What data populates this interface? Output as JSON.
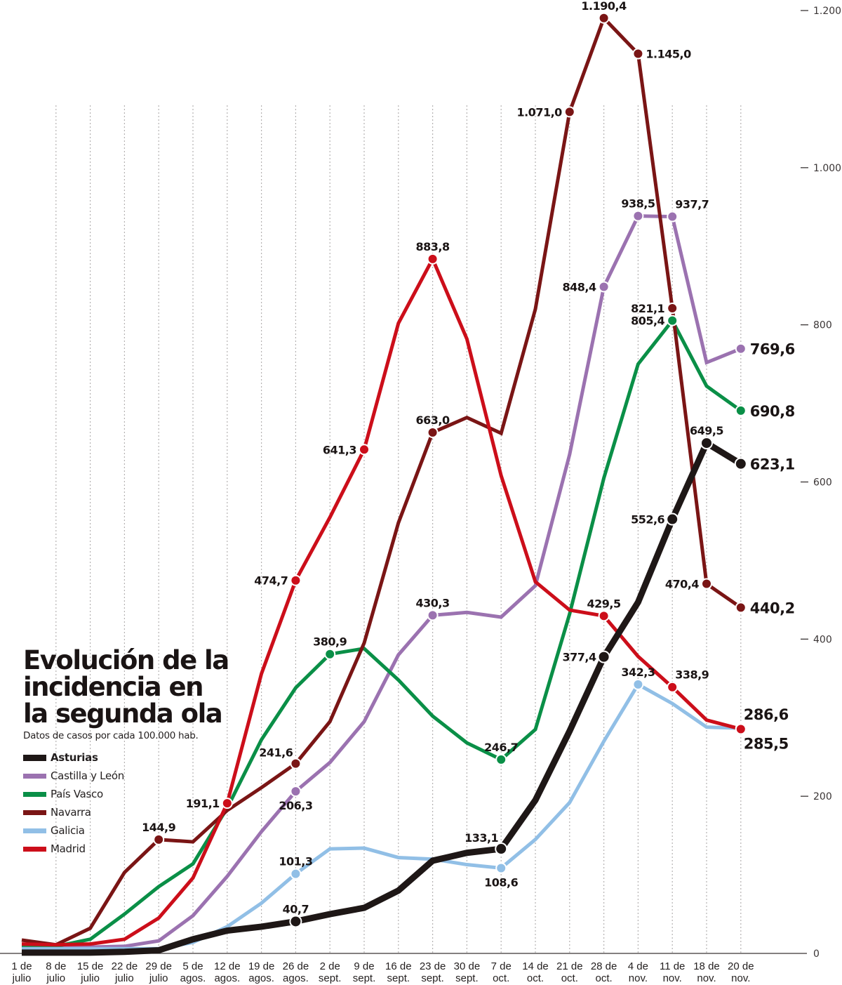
{
  "chart_data": {
    "type": "line",
    "title": "Evolución de la incidencia en la segunda ola",
    "subtitle": "Datos de casos por cada 100.000 hab.",
    "xlabel": "",
    "ylabel": "",
    "ylim": [
      0,
      1200
    ],
    "yticks": [
      0,
      200,
      400,
      600,
      800,
      1000,
      1200
    ],
    "ytick_labels": [
      "0",
      "200",
      "400",
      "600",
      "800",
      "1.000",
      "1.200"
    ],
    "grid": "vertical dotted lines at each category",
    "legend_position": "left-middle",
    "categories": [
      [
        "1 de",
        "julio"
      ],
      [
        "8 de",
        "julio"
      ],
      [
        "15 de",
        "julio"
      ],
      [
        "22 de",
        "julio"
      ],
      [
        "29 de",
        "julio"
      ],
      [
        "5 de",
        "agos."
      ],
      [
        "12 de",
        "agos."
      ],
      [
        "19 de",
        "agos."
      ],
      [
        "26 de",
        "agos."
      ],
      [
        "2 de",
        "sept."
      ],
      [
        "9 de",
        "sept."
      ],
      [
        "16 de",
        "sept."
      ],
      [
        "23 de",
        "sept."
      ],
      [
        "30 de",
        "sept."
      ],
      [
        "7 de",
        "oct."
      ],
      [
        "14 de",
        "oct."
      ],
      [
        "21 de",
        "oct."
      ],
      [
        "28 de",
        "oct."
      ],
      [
        "4 de",
        "nov."
      ],
      [
        "11 de",
        "nov."
      ],
      [
        "18 de",
        "nov."
      ],
      [
        "20 de",
        "nov."
      ]
    ],
    "series": [
      {
        "name": "Castilla y León",
        "color": "#9b72b0",
        "values": [
          9,
          8,
          8,
          9,
          16,
          48,
          98,
          155,
          206.3,
          243,
          295,
          380,
          430.3,
          434,
          428,
          468,
          635,
          848.4,
          938.5,
          937.7,
          752,
          769.6
        ],
        "labels": [
          {
            "index": 8,
            "text": "206,3",
            "pos": "below"
          },
          {
            "index": 12,
            "text": "430,3",
            "pos": "above"
          },
          {
            "index": 17,
            "text": "848,4",
            "pos": "left"
          },
          {
            "index": 18,
            "text": "938,5",
            "pos": "above"
          },
          {
            "index": 19,
            "text": "937,7",
            "pos": "above-right"
          },
          {
            "index": 21,
            "text": "769,6",
            "pos": "right",
            "big": true
          }
        ]
      },
      {
        "name": "País Vasco",
        "color": "#0a8f47",
        "values": [
          10,
          9,
          18,
          50,
          85,
          114,
          185,
          272,
          338,
          380.9,
          388,
          348,
          302,
          268,
          246.7,
          285,
          432,
          605,
          750,
          805.4,
          722,
          690.8
        ],
        "labels": [
          {
            "index": 9,
            "text": "380,9",
            "pos": "above"
          },
          {
            "index": 14,
            "text": "246,7",
            "pos": "above"
          },
          {
            "index": 19,
            "text": "805,4",
            "pos": "left"
          },
          {
            "index": 21,
            "text": "690,8",
            "pos": "right",
            "big": true
          }
        ]
      },
      {
        "name": "Navarra",
        "color": "#7a1515",
        "values": [
          17,
          11,
          32,
          103,
          144.9,
          142,
          182,
          211,
          241.6,
          295,
          395,
          548,
          663.0,
          682,
          662,
          820,
          1071.0,
          1190.4,
          1145.0,
          821.1,
          470.4,
          440.2
        ],
        "labels": [
          {
            "index": 4,
            "text": "144,9",
            "pos": "above"
          },
          {
            "index": 8,
            "text": "241,6",
            "pos": "above-left"
          },
          {
            "index": 12,
            "text": "663,0",
            "pos": "above"
          },
          {
            "index": 16,
            "text": "1.071,0",
            "pos": "left"
          },
          {
            "index": 17,
            "text": "1.190,4",
            "pos": "above"
          },
          {
            "index": 18,
            "text": "1.145,0",
            "pos": "right"
          },
          {
            "index": 19,
            "text": "821,1",
            "pos": "left"
          },
          {
            "index": 20,
            "text": "470,4",
            "pos": "left"
          },
          {
            "index": 21,
            "text": "440,2",
            "pos": "right",
            "big": true
          }
        ]
      },
      {
        "name": "Galicia",
        "color": "#91bfe6",
        "values": [
          6,
          6,
          6,
          6,
          6,
          14,
          34,
          64,
          101.3,
          133,
          134,
          122,
          120,
          113,
          108.6,
          145,
          192,
          270,
          342.3,
          318,
          288,
          286.6
        ],
        "labels": [
          {
            "index": 8,
            "text": "101,3",
            "pos": "above"
          },
          {
            "index": 14,
            "text": "108,6",
            "pos": "below"
          },
          {
            "index": 18,
            "text": "342,3",
            "pos": "above"
          },
          {
            "index": 21,
            "text": "286,6",
            "pos": "above-right",
            "big": true
          }
        ]
      },
      {
        "name": "Madrid",
        "color": "#cc0e1a",
        "values": [
          12,
          11,
          12,
          18,
          45,
          96,
          191.1,
          356,
          474.7,
          555,
          641.3,
          802,
          883.8,
          782,
          608,
          473,
          437,
          429.5,
          378,
          338.9,
          297,
          285.5
        ],
        "labels": [
          {
            "index": 6,
            "text": "191,1",
            "pos": "left"
          },
          {
            "index": 8,
            "text": "474,7",
            "pos": "left"
          },
          {
            "index": 10,
            "text": "641,3",
            "pos": "left"
          },
          {
            "index": 12,
            "text": "883,8",
            "pos": "above"
          },
          {
            "index": 17,
            "text": "429,5",
            "pos": "above"
          },
          {
            "index": 19,
            "text": "338,9",
            "pos": "above-right"
          },
          {
            "index": 21,
            "text": "285,5",
            "pos": "below-right",
            "big": true
          }
        ]
      },
      {
        "name": "Asturias",
        "color": "#1e1716",
        "bold": true,
        "values": [
          1,
          1,
          1,
          2,
          4,
          18,
          29,
          34,
          40.7,
          50,
          58,
          80,
          118,
          128,
          133.1,
          195,
          283,
          377.4,
          447,
          552.6,
          649.5,
          623.1
        ],
        "labels": [
          {
            "index": 8,
            "text": "40,7",
            "pos": "above"
          },
          {
            "index": 14,
            "text": "133,1",
            "pos": "above-left"
          },
          {
            "index": 17,
            "text": "377,4",
            "pos": "left"
          },
          {
            "index": 19,
            "text": "552,6",
            "pos": "left"
          },
          {
            "index": 20,
            "text": "649,5",
            "pos": "above"
          },
          {
            "index": 21,
            "text": "623,1",
            "pos": "right",
            "big": true
          }
        ]
      }
    ],
    "markers": {
      "Castilla y León": [
        8,
        12,
        17,
        18,
        19,
        21
      ],
      "País Vasco": [
        9,
        14,
        19,
        21
      ],
      "Navarra": [
        4,
        8,
        12,
        16,
        17,
        18,
        19,
        20,
        21
      ],
      "Galicia": [
        8,
        14,
        18,
        21
      ],
      "Madrid": [
        6,
        8,
        10,
        12,
        17,
        19,
        21
      ],
      "Asturias": [
        8,
        14,
        17,
        19,
        20,
        21
      ]
    }
  },
  "legend": [
    {
      "label": "Asturias",
      "color": "#1e1716",
      "bold": true
    },
    {
      "label": "Castilla y León",
      "color": "#9b72b0"
    },
    {
      "label": "País Vasco",
      "color": "#0a8f47"
    },
    {
      "label": "Navarra",
      "color": "#7a1515"
    },
    {
      "label": "Galicia",
      "color": "#91bfe6"
    },
    {
      "label": "Madrid",
      "color": "#cc0e1a"
    }
  ],
  "header": {
    "title": "Evolución de la incidencia en la segunda ola",
    "subtitle": "Datos de casos por cada 100.000 hab."
  }
}
